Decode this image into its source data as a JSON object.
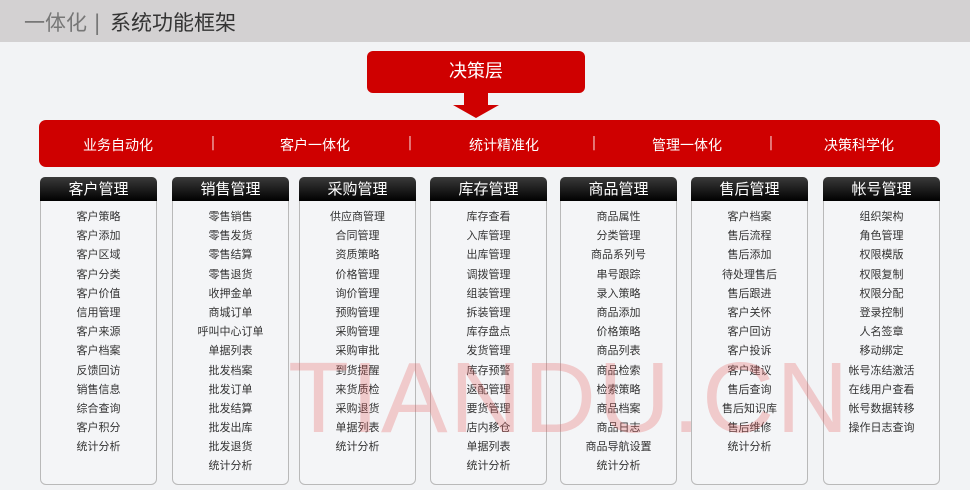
{
  "header": {
    "prefix": "一体化 |",
    "title": "系统功能框架"
  },
  "decision_layer": "决策层",
  "pillars": [
    "业务自动化",
    "客户一体化",
    "统计精准化",
    "管理一体化",
    "决策科学化"
  ],
  "separator": "|",
  "modules": [
    {
      "title": "客户管理",
      "items": [
        "客户策略",
        "客户添加",
        "客户区域",
        "客户分类",
        "客户价值",
        "信用管理",
        "客户来源",
        "客户档案",
        "反馈回访",
        "销售信息",
        "综合查询",
        "客户积分",
        "统计分析"
      ]
    },
    {
      "title": "销售管理",
      "items": [
        "零售销售",
        "零售发货",
        "零售结算",
        "零售退货",
        "收押金单",
        "商城订单",
        "呼叫中心订单",
        "单据列表",
        "批发档案",
        "批发订单",
        "批发结算",
        "批发出库",
        "批发退货",
        "统计分析"
      ]
    },
    {
      "title": "采购管理",
      "items": [
        "供应商管理",
        "合同管理",
        "资质策略",
        "价格管理",
        "询价管理",
        "预购管理",
        "采购管理",
        "采购审批",
        "到货提醒",
        "来货质检",
        "采购退货",
        "单据列表",
        "统计分析"
      ]
    },
    {
      "title": "库存管理",
      "items": [
        "库存查看",
        "入库管理",
        "出库管理",
        "调拨管理",
        "组装管理",
        "拆装管理",
        "库存盘点",
        "发货管理",
        "库存预警",
        "返配管理",
        "要货管理",
        "店内移仓",
        "单据列表",
        "统计分析"
      ]
    },
    {
      "title": "商品管理",
      "items": [
        "商品属性",
        "分类管理",
        "商品系列号",
        "串号跟踪",
        "录入策略",
        "商品添加",
        "价格策略",
        "商品列表",
        "商品检索",
        "检索策略",
        "商品档案",
        "商品日志",
        "商品导航设置",
        "统计分析"
      ]
    },
    {
      "title": "售后管理",
      "items": [
        "客户档案",
        "售后流程",
        "售后添加",
        "待处理售后",
        "售后跟进",
        "客户关怀",
        "客户回访",
        "客户投诉",
        "客户建议",
        "售后查询",
        "售后知识库",
        "售后维修",
        "统计分析"
      ]
    },
    {
      "title": "帐号管理",
      "items": [
        "组织架构",
        "角色管理",
        "权限模版",
        "权限复制",
        "权限分配",
        "登录控制",
        "人名签章",
        "移动绑定",
        "帐号冻结激活",
        "在线用户查看",
        "帐号数据转移",
        "操作日志查询"
      ]
    }
  ],
  "watermark": "TIANDU.CN",
  "colors": {
    "accent": "#cf0000",
    "header_bg": "#d3d1d2"
  }
}
